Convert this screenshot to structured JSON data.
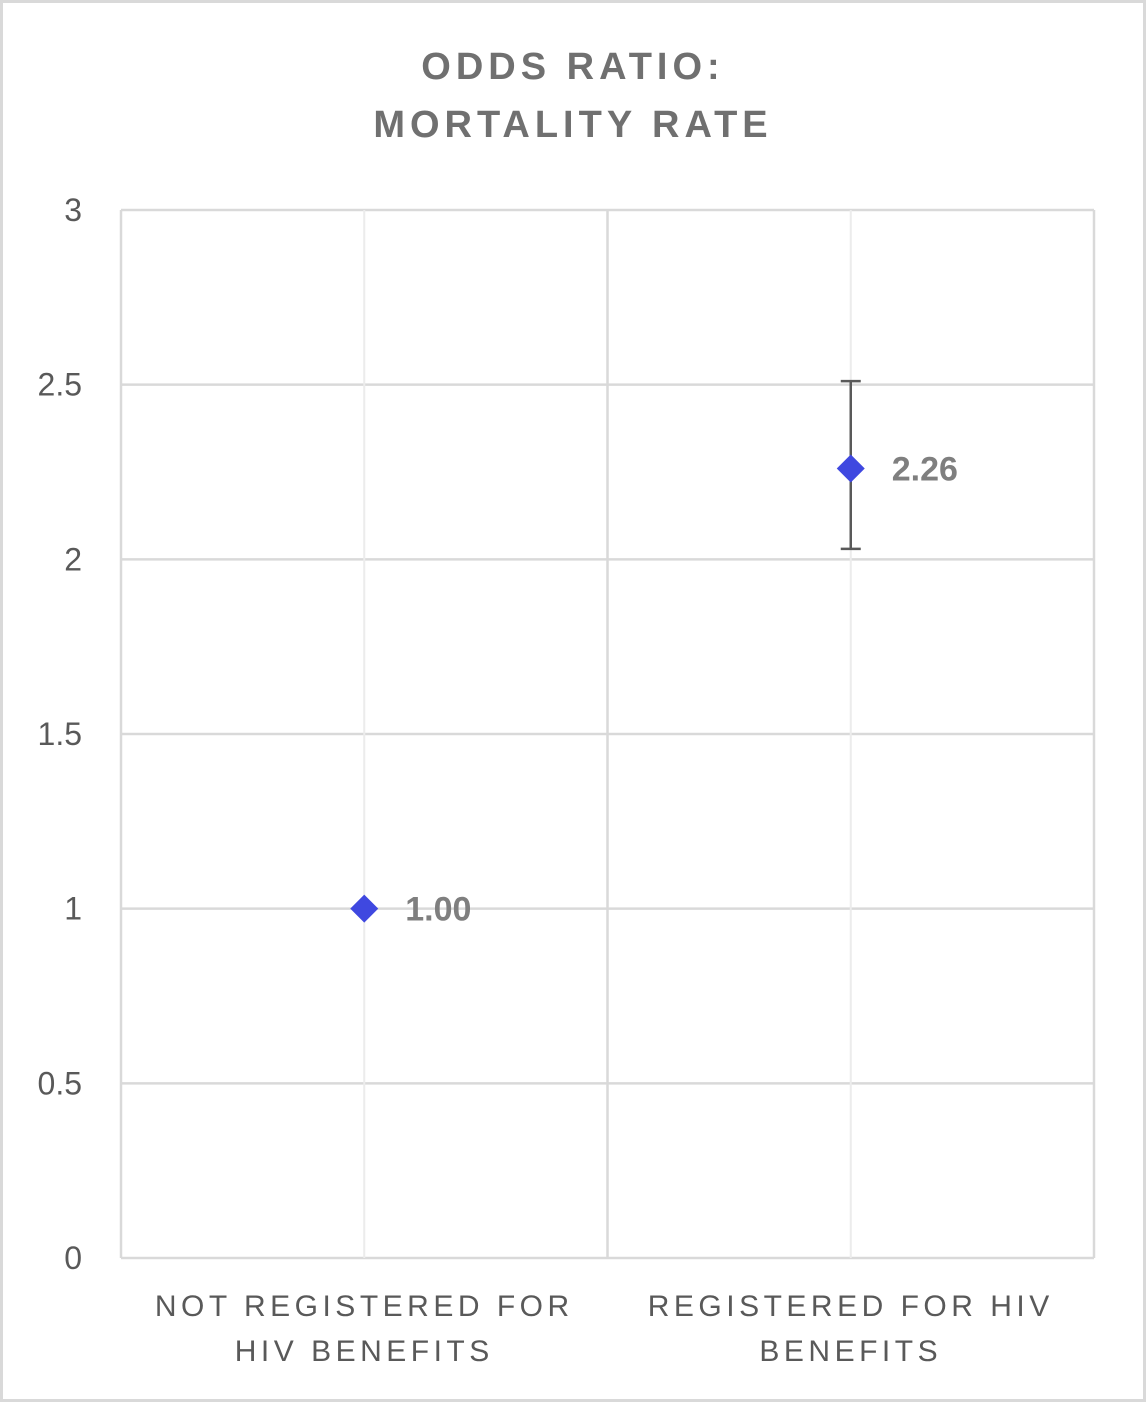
{
  "chart_data": {
    "type": "scatter",
    "title_lines": [
      "ODDS RATIO:",
      "MORTALITY RATE"
    ],
    "categories": [
      {
        "lines": [
          "NOT REGISTERED FOR",
          "HIV BENEFITS"
        ]
      },
      {
        "lines": [
          "REGISTERED FOR HIV",
          "BENEFITS"
        ]
      }
    ],
    "values": [
      1.0,
      2.26
    ],
    "data_labels": [
      "1.00",
      "2.26"
    ],
    "error_bars": [
      null,
      {
        "low": 2.03,
        "high": 2.51
      }
    ],
    "ylim": [
      0,
      3
    ],
    "yticks": [
      {
        "value": 0,
        "label": "0"
      },
      {
        "value": 0.5,
        "label": "0.5"
      },
      {
        "value": 1,
        "label": "1"
      },
      {
        "value": 1.5,
        "label": "1.5"
      },
      {
        "value": 2,
        "label": "2"
      },
      {
        "value": 2.5,
        "label": "2.5"
      },
      {
        "value": 3,
        "label": "3"
      }
    ],
    "grid": true,
    "xlabel": "",
    "ylabel": "",
    "colors": {
      "marker": "#3f48e0",
      "grid": "#d9d9d9",
      "error_bar": "#595959",
      "title": "#707070",
      "data_label": "#7f7f7f"
    }
  }
}
